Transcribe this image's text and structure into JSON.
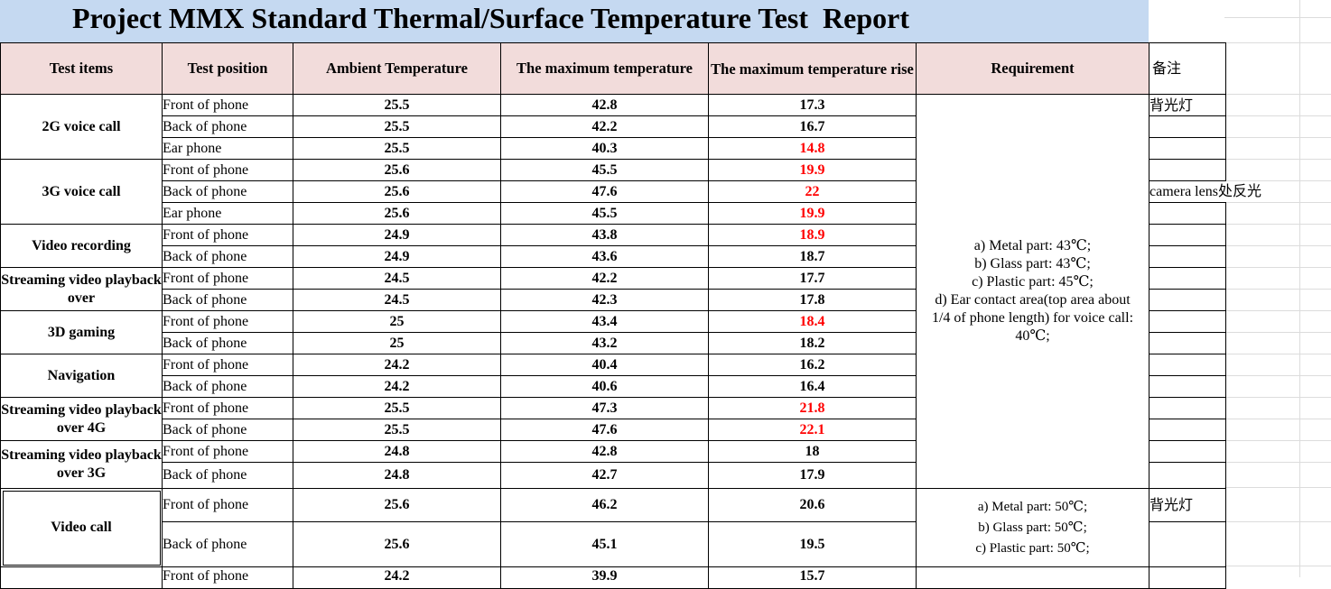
{
  "title": "Project MMX Standard Thermal/Surface Temperature Test  Report",
  "headers": {
    "test_items": "Test items",
    "test_position": "Test position",
    "ambient": "Ambient Temperature",
    "max_temp": "The maximum temperature",
    "max_rise": "The maximum temperature rise",
    "requirement": "Requirement",
    "notes": "备注"
  },
  "groups": [
    {
      "item": "2G voice call",
      "rows": [
        {
          "pos": "Front of phone",
          "amb": "25.5",
          "max": "42.8",
          "rise": "17.3",
          "red": false,
          "note": "背光灯"
        },
        {
          "pos": "Back of phone",
          "amb": "25.5",
          "max": "42.2",
          "rise": "16.7",
          "red": false,
          "note": ""
        },
        {
          "pos": "Ear phone",
          "amb": "25.5",
          "max": "40.3",
          "rise": "14.8",
          "red": true,
          "note": ""
        }
      ]
    },
    {
      "item": "3G voice call",
      "rows": [
        {
          "pos": "Front of phone",
          "amb": "25.6",
          "max": "45.5",
          "rise": "19.9",
          "red": true,
          "note": ""
        },
        {
          "pos": "Back of phone",
          "amb": "25.6",
          "max": "47.6",
          "rise": "22",
          "red": true,
          "note": "camera lens处反光"
        },
        {
          "pos": "Ear phone",
          "amb": "25.6",
          "max": "45.5",
          "rise": "19.9",
          "red": true,
          "note": ""
        }
      ]
    },
    {
      "item": "Video recording",
      "rows": [
        {
          "pos": "Front of phone",
          "amb": "24.9",
          "max": "43.8",
          "rise": "18.9",
          "red": true,
          "note": ""
        },
        {
          "pos": "Back of phone",
          "amb": "24.9",
          "max": "43.6",
          "rise": "18.7",
          "red": false,
          "note": ""
        }
      ]
    },
    {
      "item": "Streaming video playback over",
      "rows": [
        {
          "pos": "Front of phone",
          "amb": "24.5",
          "max": "42.2",
          "rise": "17.7",
          "red": false,
          "note": ""
        },
        {
          "pos": "Back of phone",
          "amb": "24.5",
          "max": "42.3",
          "rise": "17.8",
          "red": false,
          "note": ""
        }
      ]
    },
    {
      "item": "3D gaming",
      "rows": [
        {
          "pos": "Front of phone",
          "amb": "25",
          "max": "43.4",
          "rise": "18.4",
          "red": true,
          "note": ""
        },
        {
          "pos": "Back of phone",
          "amb": "25",
          "max": "43.2",
          "rise": "18.2",
          "red": false,
          "note": ""
        }
      ]
    },
    {
      "item": "Navigation",
      "rows": [
        {
          "pos": "Front of phone",
          "amb": "24.2",
          "max": "40.4",
          "rise": "16.2",
          "red": false,
          "note": ""
        },
        {
          "pos": "Back of phone",
          "amb": "24.2",
          "max": "40.6",
          "rise": "16.4",
          "red": false,
          "note": ""
        }
      ]
    },
    {
      "item": "Streaming video playback over 4G",
      "rows": [
        {
          "pos": "Front of phone",
          "amb": "25.5",
          "max": "47.3",
          "rise": "21.8",
          "red": true,
          "note": ""
        },
        {
          "pos": "Back of phone",
          "amb": "25.5",
          "max": "47.6",
          "rise": "22.1",
          "red": true,
          "note": ""
        }
      ]
    },
    {
      "item": "Streaming video playback over 3G",
      "rows": [
        {
          "pos": "Front of phone",
          "amb": "24.8",
          "max": "42.8",
          "rise": "18",
          "red": false,
          "note": ""
        },
        {
          "pos": "Back of phone",
          "amb": "24.8",
          "max": "42.7",
          "rise": "17.9",
          "red": false,
          "note": ""
        }
      ]
    }
  ],
  "requirement_1": [
    "a) Metal part: 43℃;",
    "b) Glass part: 43℃;",
    "c) Plastic part: 45℃;",
    "d) Ear contact area(top area about 1/4 of phone length) for voice call: 40℃;"
  ],
  "video_call": {
    "item": "Video call",
    "rows": [
      {
        "pos": "Front of phone",
        "amb": "25.6",
        "max": "46.2",
        "rise": "20.6",
        "note": "背光灯"
      },
      {
        "pos": "Back of phone",
        "amb": "25.6",
        "max": "45.1",
        "rise": "19.5",
        "note": ""
      }
    ],
    "requirement": [
      "a) Metal part: 50℃;",
      "b) Glass part: 50℃;",
      "c) Plastic part: 50℃;"
    ]
  },
  "partial_row": {
    "pos": "Front of phone",
    "amb": "24.2",
    "max": "39.9",
    "rise": "15.7"
  },
  "colors": {
    "title_bg": "#c5d9f1",
    "header_bg": "#f2dcdb",
    "alert_red": "#ff0000"
  }
}
